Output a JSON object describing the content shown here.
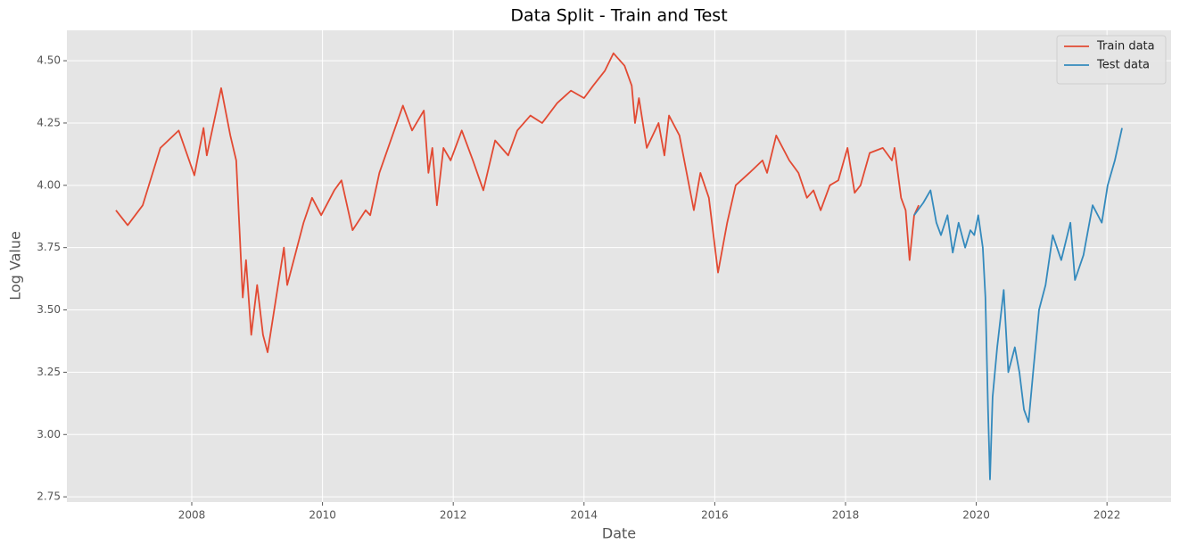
{
  "chart_data": {
    "type": "line",
    "title": "Data Split - Train and Test",
    "x_label": "Date",
    "y_label": "Log Value",
    "xlim": [
      2006.09,
      2022.98
    ],
    "ylim": [
      2.729,
      4.622
    ],
    "xticks": [
      2008,
      2010,
      2012,
      2014,
      2016,
      2018,
      2020,
      2022
    ],
    "yticks": [
      2.75,
      {
        "value": 3.0,
        "label": "3.00"
      },
      3.25,
      {
        "value": 3.5,
        "label": "3.50"
      },
      3.75,
      {
        "value": 4.0,
        "label": "4.00"
      },
      4.25,
      {
        "value": 4.5,
        "label": "4.50"
      }
    ],
    "grid": true,
    "legend": "upper right",
    "series": [
      {
        "name": "Train data",
        "color": "#E24A33",
        "x": [
          2006.84,
          2007.02,
          2007.25,
          2007.52,
          2007.8,
          2008.04,
          2008.18,
          2008.23,
          2008.45,
          2008.59,
          2008.68,
          2008.78,
          2008.83,
          2008.91,
          2009.0,
          2009.09,
          2009.16,
          2009.41,
          2009.46,
          2009.71,
          2009.84,
          2009.98,
          2010.18,
          2010.29,
          2010.46,
          2010.66,
          2010.73,
          2010.87,
          2011.07,
          2011.23,
          2011.37,
          2011.55,
          2011.62,
          2011.68,
          2011.75,
          2011.85,
          2011.96,
          2012.13,
          2012.3,
          2012.46,
          2012.64,
          2012.84,
          2012.98,
          2013.18,
          2013.36,
          2013.59,
          2013.8,
          2014.0,
          2014.14,
          2014.32,
          2014.45,
          2014.62,
          2014.73,
          2014.78,
          2014.84,
          2014.96,
          2015.14,
          2015.23,
          2015.3,
          2015.46,
          2015.57,
          2015.68,
          2015.78,
          2015.91,
          2015.98,
          2016.05,
          2016.19,
          2016.32,
          2016.53,
          2016.73,
          2016.8,
          2016.94,
          2017.14,
          2017.28,
          2017.41,
          2017.51,
          2017.62,
          2017.76,
          2017.89,
          2018.03,
          2018.14,
          2018.23,
          2018.37,
          2018.57,
          2018.71,
          2018.75,
          2018.85,
          2018.92,
          2018.98,
          2019.05,
          2019.12
        ],
        "values": [
          3.9,
          3.84,
          3.92,
          4.15,
          4.22,
          4.04,
          4.23,
          4.12,
          4.39,
          4.2,
          4.1,
          3.55,
          3.7,
          3.4,
          3.6,
          3.4,
          3.33,
          3.75,
          3.6,
          3.85,
          3.95,
          3.88,
          3.98,
          4.02,
          3.82,
          3.9,
          3.88,
          4.05,
          4.2,
          4.32,
          4.22,
          4.3,
          4.05,
          4.15,
          3.92,
          4.15,
          4.1,
          4.22,
          4.1,
          3.98,
          4.18,
          4.12,
          4.22,
          4.28,
          4.25,
          4.33,
          4.38,
          4.35,
          4.4,
          4.46,
          4.53,
          4.48,
          4.4,
          4.25,
          4.35,
          4.15,
          4.25,
          4.12,
          4.28,
          4.2,
          4.05,
          3.9,
          4.05,
          3.95,
          3.8,
          3.65,
          3.85,
          4.0,
          4.05,
          4.1,
          4.05,
          4.2,
          4.1,
          4.05,
          3.95,
          3.98,
          3.9,
          4.0,
          4.02,
          4.15,
          3.97,
          4.0,
          4.13,
          4.15,
          4.1,
          4.15,
          3.95,
          3.9,
          3.7,
          3.88,
          3.92
        ]
      },
      {
        "name": "Test data",
        "color": "#348ABD",
        "x": [
          2019.05,
          2019.19,
          2019.3,
          2019.39,
          2019.46,
          2019.56,
          2019.64,
          2019.73,
          2019.83,
          2019.91,
          2019.97,
          2020.03,
          2020.1,
          2020.14,
          2020.18,
          2020.21,
          2020.25,
          2020.32,
          2020.42,
          2020.49,
          2020.59,
          2020.66,
          2020.73,
          2020.8,
          2020.87,
          2020.96,
          2021.06,
          2021.17,
          2021.3,
          2021.44,
          2021.51,
          2021.64,
          2021.78,
          2021.92,
          2022.01,
          2022.12,
          2022.23
        ],
        "values": [
          3.88,
          3.93,
          3.98,
          3.85,
          3.8,
          3.88,
          3.73,
          3.85,
          3.75,
          3.82,
          3.8,
          3.88,
          3.75,
          3.55,
          3.1,
          2.82,
          3.15,
          3.35,
          3.58,
          3.25,
          3.35,
          3.25,
          3.1,
          3.05,
          3.25,
          3.5,
          3.6,
          3.8,
          3.7,
          3.85,
          3.62,
          3.72,
          3.92,
          3.85,
          4.0,
          4.1,
          4.23
        ]
      }
    ]
  }
}
